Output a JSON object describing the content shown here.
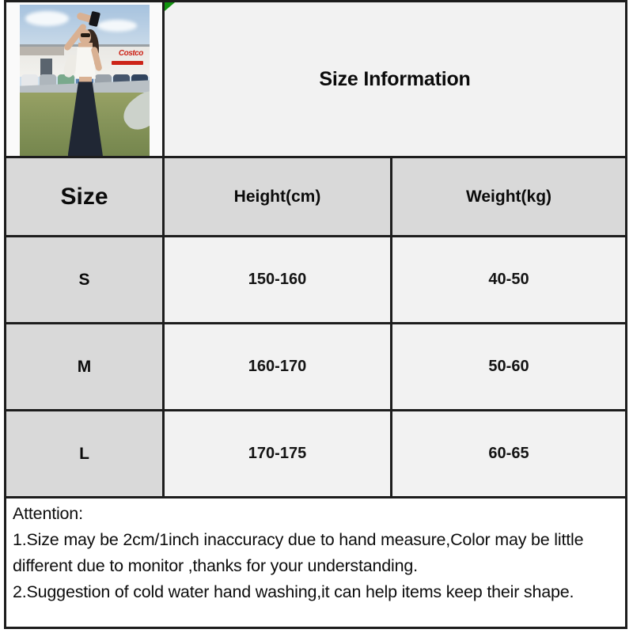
{
  "title": {
    "text": "Size Information"
  },
  "size_table": {
    "columns": [
      {
        "label": "Size"
      },
      {
        "label": "Height(cm)"
      },
      {
        "label": "Weight(kg)"
      }
    ],
    "rows": [
      {
        "size": "S",
        "height": "150-160",
        "weight": "40-50"
      },
      {
        "size": "M",
        "height": "160-170",
        "weight": "50-60"
      },
      {
        "size": "L",
        "height": "170-175",
        "weight": "60-65"
      }
    ]
  },
  "attention": {
    "heading": "Attention:",
    "notes": [
      "1.Size may be 2cm/1inch inaccuracy due to hand measure,Color may be little different due to monitor ,thanks for your understanding.",
      "2.Suggestion of cold water hand washing,it can help items keep their shape."
    ]
  },
  "photo": {
    "sign_text": "Costco"
  },
  "colors": {
    "border": "#1d1d1d",
    "header_bg": "#d9d9d9",
    "value_bg": "#f2f2f2",
    "title_bg": "#f2f2f2",
    "photo_bg": "#fafafa",
    "attention_bg": "#ffffff",
    "marker_green": "#12930f",
    "sign_red": "#cc2418"
  }
}
